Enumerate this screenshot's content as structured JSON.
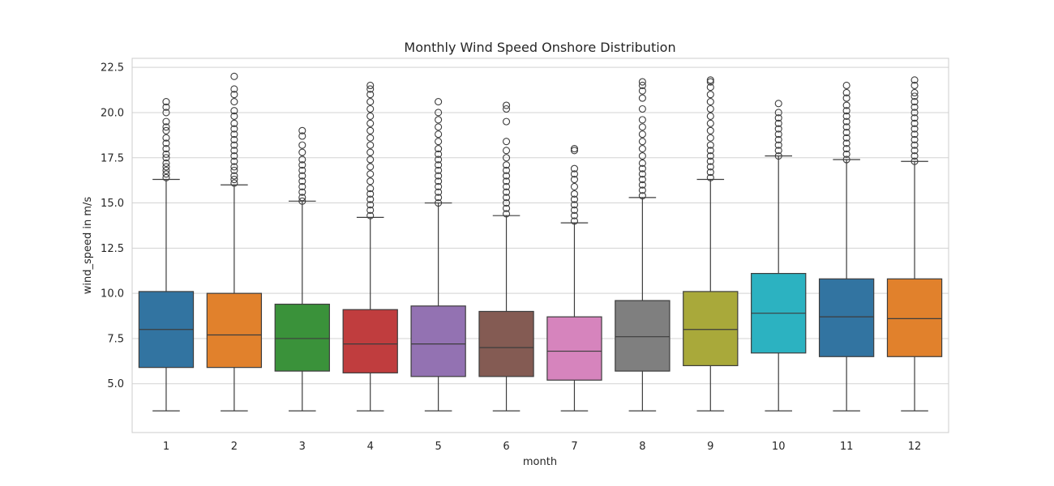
{
  "chart_data": {
    "type": "box",
    "title": "Monthly Wind Speed Onshore Distribution",
    "xlabel": "month",
    "ylabel": "wind_speed in m/s",
    "ylim": [
      2.3,
      23.0
    ],
    "yticks": [
      5.0,
      7.5,
      10.0,
      12.5,
      15.0,
      17.5,
      20.0,
      22.5
    ],
    "ytick_labels": [
      "5.0",
      "7.5",
      "10.0",
      "12.5",
      "15.0",
      "17.5",
      "20.0",
      "22.5"
    ],
    "grid": true,
    "categories": [
      "1",
      "2",
      "3",
      "4",
      "5",
      "6",
      "7",
      "8",
      "9",
      "10",
      "11",
      "12"
    ],
    "boxes": [
      {
        "category": "1",
        "whisker_low": 3.5,
        "q1": 5.9,
        "median": 8.0,
        "q3": 10.1,
        "whisker_high": 16.3,
        "color": "#3274a1",
        "outliers": [
          16.4,
          16.6,
          16.8,
          17.0,
          17.2,
          17.5,
          17.7,
          18.0,
          18.3,
          18.6,
          19.0,
          19.2,
          19.5,
          20.0,
          20.3,
          20.6
        ]
      },
      {
        "category": "2",
        "whisker_low": 3.5,
        "q1": 5.9,
        "median": 7.7,
        "q3": 10.0,
        "whisker_high": 16.0,
        "color": "#e1812c",
        "outliers": [
          16.1,
          16.3,
          16.5,
          16.8,
          17.0,
          17.3,
          17.6,
          17.9,
          18.2,
          18.5,
          18.8,
          19.1,
          19.4,
          19.8,
          20.1,
          20.6,
          21.0,
          21.3,
          22.0
        ]
      },
      {
        "category": "3",
        "whisker_low": 3.5,
        "q1": 5.7,
        "median": 7.5,
        "q3": 9.4,
        "whisker_high": 15.1,
        "color": "#3a923a",
        "outliers": [
          15.1,
          15.3,
          15.6,
          15.9,
          16.2,
          16.5,
          16.8,
          17.1,
          17.4,
          17.8,
          18.2,
          18.7,
          19.0
        ]
      },
      {
        "category": "4",
        "whisker_low": 3.5,
        "q1": 5.6,
        "median": 7.2,
        "q3": 9.1,
        "whisker_high": 14.2,
        "color": "#c03d3e",
        "outliers": [
          14.3,
          14.6,
          14.9,
          15.2,
          15.5,
          15.8,
          16.2,
          16.6,
          17.0,
          17.4,
          17.8,
          18.2,
          18.6,
          19.0,
          19.4,
          19.8,
          20.2,
          20.6,
          21.0,
          21.3,
          21.5
        ]
      },
      {
        "category": "5",
        "whisker_low": 3.5,
        "q1": 5.4,
        "median": 7.2,
        "q3": 9.3,
        "whisker_high": 15.0,
        "color": "#9372b2",
        "outliers": [
          15.0,
          15.3,
          15.6,
          15.9,
          16.2,
          16.5,
          16.8,
          17.1,
          17.4,
          17.7,
          18.0,
          18.4,
          18.8,
          19.2,
          19.6,
          20.0,
          20.6
        ]
      },
      {
        "category": "6",
        "whisker_low": 3.5,
        "q1": 5.4,
        "median": 7.0,
        "q3": 9.0,
        "whisker_high": 14.3,
        "color": "#845b53",
        "outliers": [
          14.4,
          14.7,
          15.0,
          15.3,
          15.6,
          15.9,
          16.2,
          16.5,
          16.8,
          17.1,
          17.5,
          17.9,
          18.4,
          19.5,
          20.2,
          20.4
        ]
      },
      {
        "category": "7",
        "whisker_low": 3.5,
        "q1": 5.2,
        "median": 6.8,
        "q3": 8.7,
        "whisker_high": 13.9,
        "color": "#d684bd",
        "outliers": [
          14.0,
          14.3,
          14.6,
          14.9,
          15.2,
          15.5,
          15.9,
          16.3,
          16.6,
          16.9,
          17.9,
          18.0
        ]
      },
      {
        "category": "8",
        "whisker_low": 3.5,
        "q1": 5.7,
        "median": 7.6,
        "q3": 9.6,
        "whisker_high": 15.3,
        "color": "#7f7f7f",
        "outliers": [
          15.4,
          15.7,
          16.0,
          16.3,
          16.6,
          16.9,
          17.2,
          17.6,
          18.0,
          18.4,
          18.8,
          19.2,
          19.6,
          20.2,
          20.8,
          21.2,
          21.5,
          21.7
        ]
      },
      {
        "category": "9",
        "whisker_low": 3.5,
        "q1": 6.0,
        "median": 8.0,
        "q3": 10.1,
        "whisker_high": 16.3,
        "color": "#a9a93a",
        "outliers": [
          16.4,
          16.7,
          17.0,
          17.3,
          17.6,
          17.9,
          18.2,
          18.6,
          19.0,
          19.4,
          19.8,
          20.2,
          20.6,
          21.0,
          21.4,
          21.7,
          21.8
        ]
      },
      {
        "category": "10",
        "whisker_low": 3.5,
        "q1": 6.7,
        "median": 8.9,
        "q3": 11.1,
        "whisker_high": 17.6,
        "color": "#2cb2c1",
        "outliers": [
          17.6,
          17.9,
          18.2,
          18.5,
          18.8,
          19.1,
          19.4,
          19.7,
          20.0,
          20.5
        ]
      },
      {
        "category": "11",
        "whisker_low": 3.5,
        "q1": 6.5,
        "median": 8.7,
        "q3": 10.8,
        "whisker_high": 17.4,
        "color": "#3274a1",
        "outliers": [
          17.4,
          17.7,
          18.0,
          18.3,
          18.6,
          18.9,
          19.2,
          19.5,
          19.8,
          20.1,
          20.4,
          20.8,
          21.1,
          21.5
        ]
      },
      {
        "category": "12",
        "whisker_low": 3.5,
        "q1": 6.5,
        "median": 8.6,
        "q3": 10.8,
        "whisker_high": 17.3,
        "color": "#e1812c",
        "outliers": [
          17.3,
          17.6,
          17.9,
          18.2,
          18.5,
          18.8,
          19.1,
          19.4,
          19.7,
          20.0,
          20.3,
          20.6,
          20.9,
          21.1,
          21.5,
          21.8
        ]
      }
    ]
  }
}
